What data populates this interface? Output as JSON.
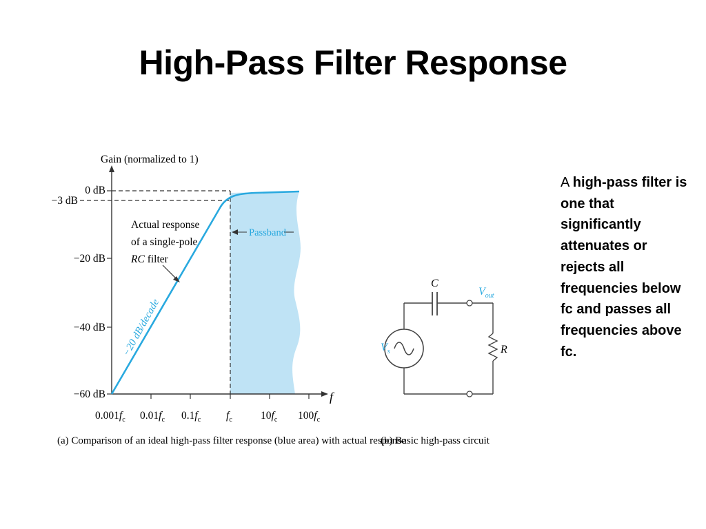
{
  "title": "High-Pass Filter Response",
  "graph": {
    "y_axis_label": "Gain (normalized to 1)",
    "x_axis_label": "f",
    "y_ticks": [
      "0 dB",
      "−3 dB",
      "−20 dB",
      "−40 dB",
      "−60 dB"
    ],
    "x_ticks": [
      {
        "coef": "0.001",
        "sym": "f",
        "sub": "c"
      },
      {
        "coef": "0.01",
        "sym": "f",
        "sub": "c"
      },
      {
        "coef": "0.1",
        "sym": "f",
        "sub": "c"
      },
      {
        "coef": "",
        "sym": "f",
        "sub": "c"
      },
      {
        "coef": "10",
        "sym": "f",
        "sub": "c"
      },
      {
        "coef": "100",
        "sym": "f",
        "sub": "c"
      }
    ],
    "annotation_line1": "Actual response",
    "annotation_line2": "of a single-pole",
    "annotation_line3_italic": "RC",
    "annotation_line3_rest": " filter",
    "slope_label": "−20 dB/decade",
    "passband_label": "Passband",
    "caption": "(a) Comparison of an ideal high-pass filter response (blue area) with actual response",
    "colors": {
      "passband_fill": "#bfe3f5",
      "response_line": "#29a9df",
      "axis": "#333333"
    }
  },
  "circuit": {
    "capacitor_label": "C",
    "vout_label_main": "V",
    "vout_label_sub": "out",
    "source_label_main": "V",
    "source_label_sub": "s",
    "resistor_label": "R",
    "caption": "(b) Basic high-pass circuit"
  },
  "description": {
    "lead": "A ",
    "bold": "high-pass filter is one that significantly attenuates or rejects all frequencies below fc and passes all frequencies above  fc."
  }
}
